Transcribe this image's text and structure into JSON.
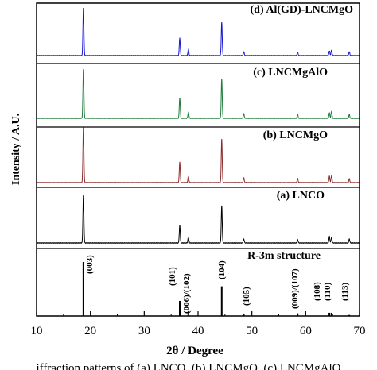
{
  "chart_data": {
    "type": "line",
    "xlabel": "2θ / Degree",
    "ylabel": "Intensity / A.U.",
    "xlim": [
      10,
      70
    ],
    "xticks": [
      10,
      20,
      30,
      40,
      50,
      60,
      70
    ],
    "series": [
      {
        "name": "(d) Al(GD)-LNCMgO",
        "color": "#1515d0",
        "peaks": [
          [
            18.7,
            60
          ],
          [
            36.6,
            22
          ],
          [
            38.2,
            8
          ],
          [
            44.4,
            42
          ],
          [
            48.5,
            5
          ],
          [
            58.5,
            4
          ],
          [
            64.4,
            6
          ],
          [
            64.8,
            7
          ],
          [
            68.1,
            5
          ]
        ]
      },
      {
        "name": "(c) LNCMgAlO",
        "color": "#1d7a3a",
        "peaks": [
          [
            18.7,
            62
          ],
          [
            36.6,
            26
          ],
          [
            38.2,
            8
          ],
          [
            44.4,
            50
          ],
          [
            48.5,
            6
          ],
          [
            58.5,
            5
          ],
          [
            64.4,
            7
          ],
          [
            64.8,
            9
          ],
          [
            68.1,
            5
          ]
        ]
      },
      {
        "name": "(b) LNCMgO",
        "color": "#8c2a2a",
        "peaks": [
          [
            18.7,
            70
          ],
          [
            36.6,
            26
          ],
          [
            38.2,
            8
          ],
          [
            44.4,
            55
          ],
          [
            48.5,
            6
          ],
          [
            58.5,
            5
          ],
          [
            64.4,
            8
          ],
          [
            64.8,
            9
          ],
          [
            68.1,
            5
          ]
        ]
      },
      {
        "name": "(a) LNCO",
        "color": "#000000",
        "peaks": [
          [
            18.7,
            60
          ],
          [
            36.6,
            22
          ],
          [
            38.2,
            7
          ],
          [
            44.4,
            47
          ],
          [
            48.5,
            5
          ],
          [
            58.5,
            4
          ],
          [
            64.4,
            8
          ],
          [
            64.8,
            7
          ],
          [
            68.1,
            5
          ]
        ]
      }
    ],
    "reference": {
      "name": "R-3m structure",
      "lines": [
        {
          "x": 18.7,
          "label": "(003)",
          "height": 100
        },
        {
          "x": 36.6,
          "label": "(101)",
          "height": 28
        },
        {
          "x": 38.2,
          "label": "(006)/(102)",
          "height": 9
        },
        {
          "x": 44.4,
          "label": "(104)",
          "height": 55
        },
        {
          "x": 48.5,
          "label": "(105)",
          "height": 4
        },
        {
          "x": 58.5,
          "label": "(009)/(107)",
          "height": 5
        },
        {
          "x": 64.4,
          "label": "(108)",
          "height": 6
        },
        {
          "x": 64.8,
          "label": "(110)",
          "height": 6
        },
        {
          "x": 68.1,
          "label": "(113)",
          "height": 2
        }
      ]
    }
  },
  "caption": "iffraction patterns of (a) LNCO, (b) LNCMgO, (c) LNCMgAlO"
}
